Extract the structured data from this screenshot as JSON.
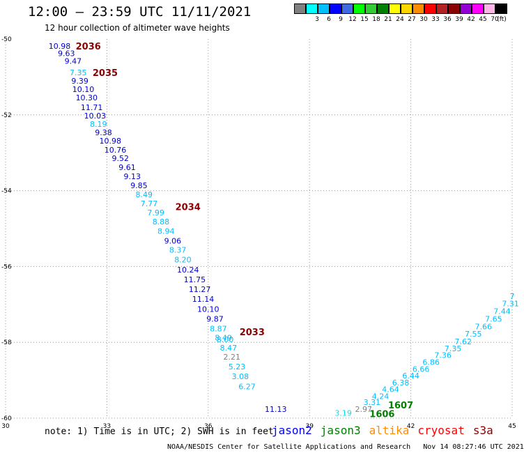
{
  "header": {
    "title": "12:00 – 23:59 UTC 11/11/2021",
    "subtitle": "12 hour collection of altimeter wave heights"
  },
  "colorbar": {
    "unit": "(ft)",
    "swatches": [
      {
        "color": "#808080",
        "label": ""
      },
      {
        "color": "#00ffff",
        "label": "3"
      },
      {
        "color": "#00bfff",
        "label": "6"
      },
      {
        "color": "#0000ff",
        "label": "9"
      },
      {
        "color": "#4169e1",
        "label": "12"
      },
      {
        "color": "#00ff00",
        "label": "15"
      },
      {
        "color": "#32cd32",
        "label": "18"
      },
      {
        "color": "#008000",
        "label": "21"
      },
      {
        "color": "#ffff00",
        "label": "24"
      },
      {
        "color": "#ffd700",
        "label": "27"
      },
      {
        "color": "#ff8c00",
        "label": "30"
      },
      {
        "color": "#ff0000",
        "label": "33"
      },
      {
        "color": "#b22222",
        "label": "36"
      },
      {
        "color": "#8b0000",
        "label": "39"
      },
      {
        "color": "#9400d3",
        "label": "42"
      },
      {
        "color": "#ff00ff",
        "label": "45"
      },
      {
        "color": "#ffb6e6",
        "label": "70"
      },
      {
        "color": "#000000",
        "label": ""
      }
    ]
  },
  "footer": {
    "note": "note: 1) Time is in UTC; 2) SWH is in feet",
    "credit": "NOAA/NESDIS Center for Satellite Applications and Research   Nov 14 08:27:46 UTC 2021",
    "satellites": [
      {
        "name": "jason2",
        "color": "#0000ff"
      },
      {
        "name": "jason3",
        "color": "#008000"
      },
      {
        "name": "altika",
        "color": "#ff8c00"
      },
      {
        "name": "cryosat",
        "color": "#ff0000"
      },
      {
        "name": "s3a",
        "color": "#8b0000"
      }
    ]
  },
  "chart_data": {
    "type": "scatter",
    "xlim": [
      30,
      45
    ],
    "ylim": [
      -60,
      -50
    ],
    "x_ticks": [
      30,
      33,
      36,
      39,
      42,
      45
    ],
    "y_ticks": [
      -50,
      -52,
      -54,
      -56,
      -58,
      -60
    ],
    "grid": true,
    "points": [
      {
        "lon": 31.6,
        "lat": -50.18,
        "v": "10.98",
        "c": "#0000cd"
      },
      {
        "lon": 31.8,
        "lat": -50.38,
        "v": "9.63",
        "c": "#0000cd"
      },
      {
        "lon": 32.0,
        "lat": -50.58,
        "v": "9.47",
        "c": "#0000cd"
      },
      {
        "lon": 32.15,
        "lat": -50.88,
        "v": "7.35",
        "c": "#00bfff"
      },
      {
        "lon": 32.2,
        "lat": -51.1,
        "v": "9.39",
        "c": "#0000cd"
      },
      {
        "lon": 32.3,
        "lat": -51.32,
        "v": "10.10",
        "c": "#0000cd"
      },
      {
        "lon": 32.4,
        "lat": -51.54,
        "v": "10.30",
        "c": "#0000cd"
      },
      {
        "lon": 32.55,
        "lat": -51.8,
        "v": "11.71",
        "c": "#0000cd"
      },
      {
        "lon": 32.65,
        "lat": -52.02,
        "v": "10.03",
        "c": "#0000cd"
      },
      {
        "lon": 32.75,
        "lat": -52.24,
        "v": "8.19",
        "c": "#00bfff"
      },
      {
        "lon": 32.9,
        "lat": -52.46,
        "v": "9.38",
        "c": "#0000cd"
      },
      {
        "lon": 33.1,
        "lat": -52.68,
        "v": "10.98",
        "c": "#0000cd"
      },
      {
        "lon": 33.25,
        "lat": -52.92,
        "v": "10.76",
        "c": "#0000cd"
      },
      {
        "lon": 33.4,
        "lat": -53.14,
        "v": "9.52",
        "c": "#0000cd"
      },
      {
        "lon": 33.6,
        "lat": -53.38,
        "v": "9.61",
        "c": "#0000cd"
      },
      {
        "lon": 33.75,
        "lat": -53.62,
        "v": "9.13",
        "c": "#0000cd"
      },
      {
        "lon": 33.95,
        "lat": -53.86,
        "v": "9.85",
        "c": "#0000cd"
      },
      {
        "lon": 34.1,
        "lat": -54.1,
        "v": "8.49",
        "c": "#00bfff"
      },
      {
        "lon": 34.25,
        "lat": -54.34,
        "v": "7.77",
        "c": "#00bfff"
      },
      {
        "lon": 34.45,
        "lat": -54.58,
        "v": "7.99",
        "c": "#00bfff"
      },
      {
        "lon": 34.6,
        "lat": -54.82,
        "v": "8.88",
        "c": "#00bfff"
      },
      {
        "lon": 34.75,
        "lat": -55.06,
        "v": "8.94",
        "c": "#00bfff"
      },
      {
        "lon": 34.95,
        "lat": -55.32,
        "v": "9.06",
        "c": "#0000cd"
      },
      {
        "lon": 35.1,
        "lat": -55.56,
        "v": "8.37",
        "c": "#00bfff"
      },
      {
        "lon": 35.25,
        "lat": -55.82,
        "v": "8.20",
        "c": "#00bfff"
      },
      {
        "lon": 35.4,
        "lat": -56.08,
        "v": "10.24",
        "c": "#0000cd"
      },
      {
        "lon": 35.6,
        "lat": -56.34,
        "v": "11.75",
        "c": "#0000cd"
      },
      {
        "lon": 35.75,
        "lat": -56.6,
        "v": "11.27",
        "c": "#0000cd"
      },
      {
        "lon": 35.85,
        "lat": -56.86,
        "v": "11.14",
        "c": "#0000cd"
      },
      {
        "lon": 36.0,
        "lat": -57.12,
        "v": "10.10",
        "c": "#0000cd"
      },
      {
        "lon": 36.2,
        "lat": -57.38,
        "v": "9.87",
        "c": "#0000cd"
      },
      {
        "lon": 36.3,
        "lat": -57.64,
        "v": "8.87",
        "c": "#00bfff"
      },
      {
        "lon": 36.45,
        "lat": -57.88,
        "v": "8.49",
        "c": "#00bfff"
      },
      {
        "lon": 36.5,
        "lat": -57.92,
        "v": "8.00",
        "c": "#00bfff"
      },
      {
        "lon": 36.6,
        "lat": -58.14,
        "v": "8.47",
        "c": "#00bfff"
      },
      {
        "lon": 36.7,
        "lat": -58.38,
        "v": "2.21",
        "c": "#808080"
      },
      {
        "lon": 36.85,
        "lat": -58.64,
        "v": "5.23",
        "c": "#00bfff"
      },
      {
        "lon": 36.95,
        "lat": -58.9,
        "v": "3.08",
        "c": "#00bfff"
      },
      {
        "lon": 37.15,
        "lat": -59.16,
        "v": "6.27",
        "c": "#00bfff"
      },
      {
        "lon": 38.0,
        "lat": -59.76,
        "v": "11.13",
        "c": "#0000cd"
      },
      {
        "lon": 40.0,
        "lat": -59.86,
        "v": "3.19",
        "c": "#00e5ee"
      },
      {
        "lon": 40.6,
        "lat": -59.76,
        "v": "2.97",
        "c": "#808080"
      },
      {
        "lon": 40.85,
        "lat": -59.58,
        "v": "3.31",
        "c": "#00bfff"
      },
      {
        "lon": 41.1,
        "lat": -59.42,
        "v": "4.24",
        "c": "#00bfff"
      },
      {
        "lon": 41.4,
        "lat": -59.24,
        "v": "4.64",
        "c": "#00bfff"
      },
      {
        "lon": 41.7,
        "lat": -59.06,
        "v": "6.38",
        "c": "#00bfff"
      },
      {
        "lon": 42.0,
        "lat": -58.88,
        "v": "6.44",
        "c": "#00bfff"
      },
      {
        "lon": 42.3,
        "lat": -58.7,
        "v": "6.66",
        "c": "#00bfff"
      },
      {
        "lon": 42.6,
        "lat": -58.52,
        "v": "6.86",
        "c": "#00bfff"
      },
      {
        "lon": 42.95,
        "lat": -58.34,
        "v": "7.36",
        "c": "#00bfff"
      },
      {
        "lon": 43.25,
        "lat": -58.16,
        "v": "7.35",
        "c": "#00bfff"
      },
      {
        "lon": 43.55,
        "lat": -57.98,
        "v": "7.62",
        "c": "#00bfff"
      },
      {
        "lon": 43.85,
        "lat": -57.78,
        "v": "7.55",
        "c": "#00bfff"
      },
      {
        "lon": 44.15,
        "lat": -57.58,
        "v": "7.66",
        "c": "#00bfff"
      },
      {
        "lon": 44.45,
        "lat": -57.38,
        "v": "7.65",
        "c": "#00bfff"
      },
      {
        "lon": 44.7,
        "lat": -57.18,
        "v": "7.44",
        "c": "#00bfff"
      },
      {
        "lon": 44.95,
        "lat": -56.98,
        "v": "7.31",
        "c": "#00bfff"
      },
      {
        "lon": 45.0,
        "lat": -56.78,
        "v": "7",
        "c": "#00bfff"
      }
    ],
    "time_labels": [
      {
        "lon": 32.45,
        "lat": -50.18,
        "text": "2036",
        "color": "#8b0000"
      },
      {
        "lon": 32.95,
        "lat": -50.88,
        "text": "2035",
        "color": "#8b0000"
      },
      {
        "lon": 35.4,
        "lat": -54.42,
        "text": "2034",
        "color": "#8b0000"
      },
      {
        "lon": 37.3,
        "lat": -57.72,
        "text": "2033",
        "color": "#8b0000"
      },
      {
        "lon": 41.7,
        "lat": -59.65,
        "text": "1607",
        "color": "#008000"
      },
      {
        "lon": 41.15,
        "lat": -59.88,
        "text": "1606",
        "color": "#008000"
      }
    ]
  }
}
